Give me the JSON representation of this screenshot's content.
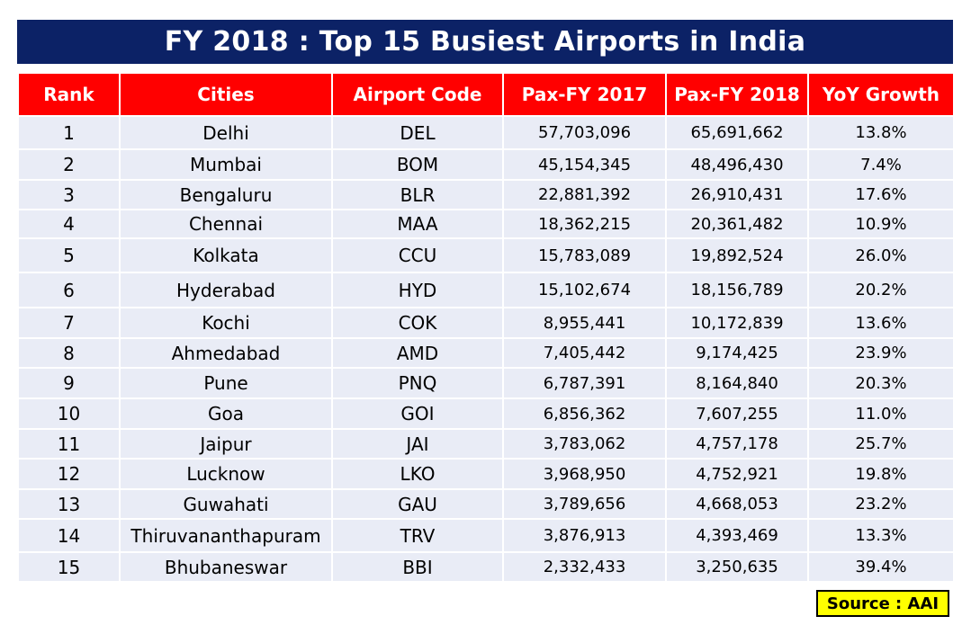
{
  "title": "FY 2018 : Top 15 Busiest Airports in India",
  "source": "Source : AAI",
  "colors": {
    "title_bg": "#0c2266",
    "header_bg": "#ff0000",
    "row_bg": "#e9ecf6",
    "source_bg": "#ffff00"
  },
  "chart_data": {
    "type": "table",
    "title": "FY 2018 : Top 15 Busiest Airports in India",
    "columns": [
      "Rank",
      "Cities",
      "Airport Code",
      "Pax-FY 2017",
      "Pax-FY 2018",
      "YoY Growth"
    ],
    "rows": [
      [
        "1",
        "Delhi",
        "DEL",
        "57,703,096",
        "65,691,662",
        "13.8%"
      ],
      [
        "2",
        "Mumbai",
        "BOM",
        "45,154,345",
        "48,496,430",
        "7.4%"
      ],
      [
        "3",
        "Bengaluru",
        "BLR",
        "22,881,392",
        "26,910,431",
        "17.6%"
      ],
      [
        "4",
        "Chennai",
        "MAA",
        "18,362,215",
        "20,361,482",
        "10.9%"
      ],
      [
        "5",
        "Kolkata",
        "CCU",
        "15,783,089",
        "19,892,524",
        "26.0%"
      ],
      [
        "6",
        "Hyderabad",
        "HYD",
        "15,102,674",
        "18,156,789",
        "20.2%"
      ],
      [
        "7",
        "Kochi",
        "COK",
        "8,955,441",
        "10,172,839",
        "13.6%"
      ],
      [
        "8",
        "Ahmedabad",
        "AMD",
        "7,405,442",
        "9,174,425",
        "23.9%"
      ],
      [
        "9",
        "Pune",
        "PNQ",
        "6,787,391",
        "8,164,840",
        "20.3%"
      ],
      [
        "10",
        "Goa",
        "GOI",
        "6,856,362",
        "7,607,255",
        "11.0%"
      ],
      [
        "11",
        "Jaipur",
        "JAI",
        "3,783,062",
        "4,757,178",
        "25.7%"
      ],
      [
        "12",
        "Lucknow",
        "LKO",
        "3,968,950",
        "4,752,921",
        "19.8%"
      ],
      [
        "13",
        "Guwahati",
        "GAU",
        "3,789,656",
        "4,668,053",
        "23.2%"
      ],
      [
        "14",
        "Thiruvananthapuram",
        "TRV",
        "3,876,913",
        "4,393,469",
        "13.3%"
      ],
      [
        "15",
        "Bhubaneswar",
        "BBI",
        "2,332,433",
        "3,250,635",
        "39.4%"
      ]
    ]
  }
}
